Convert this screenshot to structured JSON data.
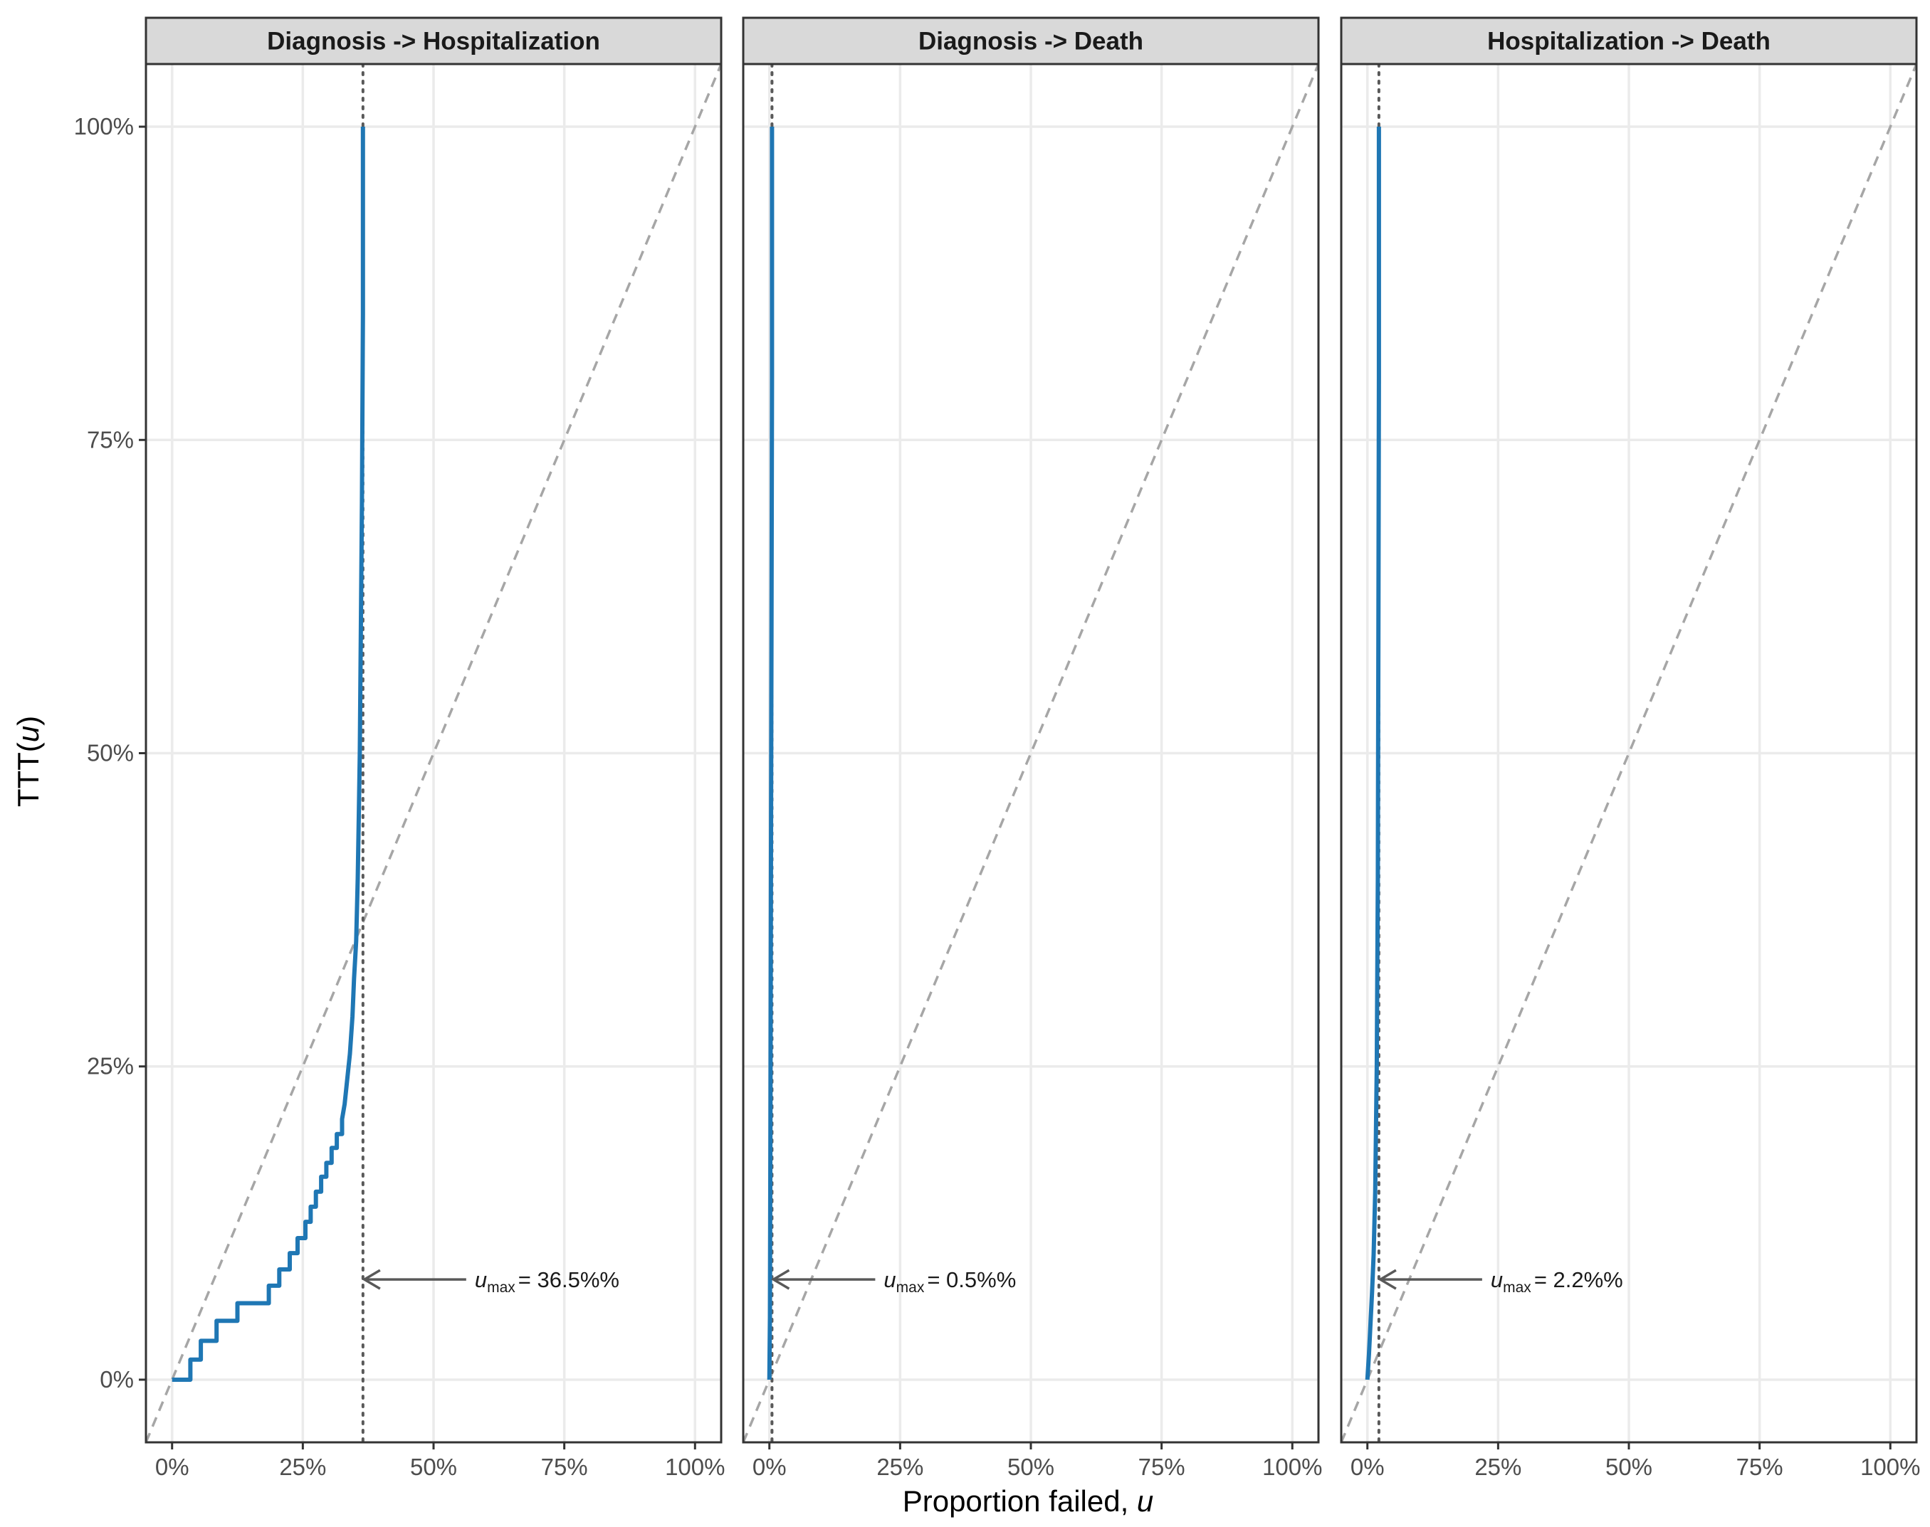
{
  "chart_data": {
    "type": "line",
    "xlabel": "Proportion failed, u",
    "xlabel_text": "Proportion failed, ",
    "xlabel_var": "u",
    "ylabel": "TTT(u)",
    "ylabel_text_prefix": "TTT(",
    "ylabel_var": "u",
    "ylabel_text_suffix": ")",
    "xlim": [
      -0.05,
      1.05
    ],
    "ylim": [
      -0.05,
      1.05
    ],
    "x_ticks": [
      0,
      0.25,
      0.5,
      0.75,
      1.0
    ],
    "y_ticks": [
      0,
      0.25,
      0.5,
      0.75,
      1.0
    ],
    "x_tick_labels": [
      "0%",
      "25%",
      "50%",
      "75%",
      "100%"
    ],
    "y_tick_labels": [
      "0%",
      "25%",
      "50%",
      "75%",
      "100%"
    ],
    "grid": true,
    "colors": {
      "ttt_curve": "#1f77b4",
      "reference_line": "#a6a6a6",
      "umax_line": "#595959",
      "arrow": "#595959",
      "strip_background": "#d9d9d9",
      "grid": "#ebebeb",
      "panel_border": "#333333"
    },
    "panels": [
      {
        "title": "Diagnosis -> Hospitalization",
        "u_max": 0.365,
        "annotation_prefix": "u",
        "annotation_sub": "max",
        "annotation_value": "= 36.5%%",
        "annotation_y": 0.08,
        "series": [
          {
            "x": [
              0.0,
              0.035,
              0.035,
              0.055,
              0.055,
              0.085,
              0.085,
              0.125,
              0.125,
              0.185,
              0.185,
              0.205,
              0.205,
              0.225,
              0.225,
              0.24,
              0.24,
              0.255,
              0.255,
              0.265,
              0.265,
              0.275,
              0.275,
              0.285,
              0.285,
              0.295,
              0.295,
              0.305,
              0.305,
              0.315,
              0.315,
              0.325,
              0.325,
              0.33,
              0.335,
              0.34,
              0.345,
              0.348,
              0.352,
              0.355,
              0.357,
              0.359,
              0.361,
              0.363,
              0.365,
              0.365
            ],
            "y": [
              0.0,
              0.0,
              0.016,
              0.016,
              0.031,
              0.031,
              0.047,
              0.047,
              0.061,
              0.061,
              0.075,
              0.075,
              0.088,
              0.088,
              0.101,
              0.101,
              0.113,
              0.113,
              0.126,
              0.126,
              0.138,
              0.138,
              0.15,
              0.15,
              0.162,
              0.162,
              0.173,
              0.173,
              0.185,
              0.185,
              0.196,
              0.196,
              0.208,
              0.22,
              0.24,
              0.26,
              0.29,
              0.32,
              0.35,
              0.4,
              0.45,
              0.5,
              0.6,
              0.7,
              0.85,
              1.0
            ]
          }
        ]
      },
      {
        "title": "Diagnosis -> Death",
        "u_max": 0.005,
        "annotation_prefix": "u",
        "annotation_sub": "max",
        "annotation_value": "= 0.5%%",
        "annotation_y": 0.08,
        "series": [
          {
            "x": [
              0.0,
              0.001,
              0.002,
              0.003,
              0.004,
              0.005,
              0.005
            ],
            "y": [
              0.0,
              0.05,
              0.2,
              0.4,
              0.6,
              0.8,
              1.0
            ]
          }
        ]
      },
      {
        "title": "Hospitalization -> Death",
        "u_max": 0.022,
        "annotation_prefix": "u",
        "annotation_sub": "max",
        "annotation_value": "= 2.2%%",
        "annotation_y": 0.08,
        "series": [
          {
            "x": [
              0.0,
              0.003,
              0.006,
              0.009,
              0.012,
              0.015,
              0.018,
              0.02,
              0.021,
              0.022,
              0.022
            ],
            "y": [
              0.0,
              0.02,
              0.045,
              0.07,
              0.1,
              0.15,
              0.25,
              0.4,
              0.6,
              0.8,
              1.0
            ]
          }
        ]
      }
    ]
  }
}
